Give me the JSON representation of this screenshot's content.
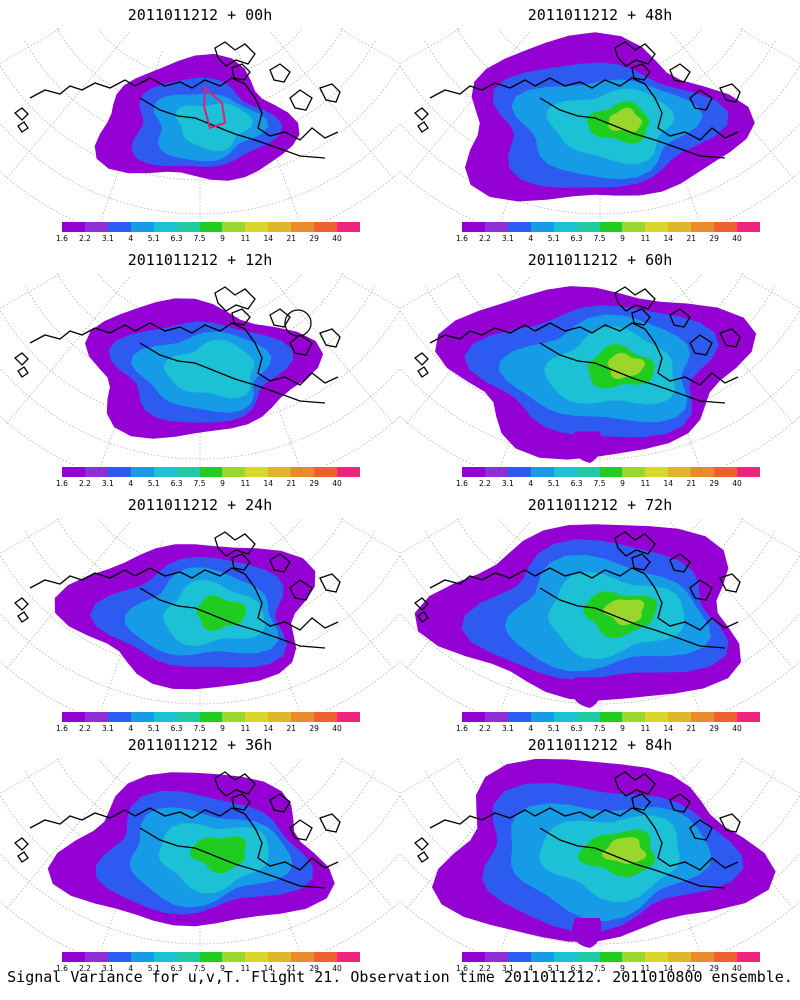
{
  "colorbar": {
    "colors": [
      "#9400d3",
      "#8e2fd6",
      "#2d5bf2",
      "#169ce6",
      "#1cc1d6",
      "#21c8a4",
      "#21cc21",
      "#9bd62d",
      "#d6d62b",
      "#e0b42b",
      "#ea8b2b",
      "#f0602e",
      "#f0247a"
    ],
    "labels": [
      "1.6",
      "2.2",
      "3.1",
      "4",
      "5.1",
      "6.3",
      "7.5",
      "9",
      "11",
      "14",
      "21",
      "29",
      "40"
    ]
  },
  "panels": [
    {
      "title": "2011011212 + 00h",
      "spread": 0.15
    },
    {
      "title": "2011011212 + 48h",
      "spread": 0.75
    },
    {
      "title": "2011011212 + 12h",
      "spread": 0.35
    },
    {
      "title": "2011011212 + 60h",
      "spread": 0.85
    },
    {
      "title": "2011011212 + 24h",
      "spread": 0.5
    },
    {
      "title": "2011011212 + 72h",
      "spread": 0.95
    },
    {
      "title": "2011011212 + 36h",
      "spread": 0.62
    },
    {
      "title": "2011011212 + 84h",
      "spread": 1.0
    }
  ],
  "footer": "Signal Variance for u,v,T. Flight 21. Observation time 2011011212. 2011010800 ensemble."
}
